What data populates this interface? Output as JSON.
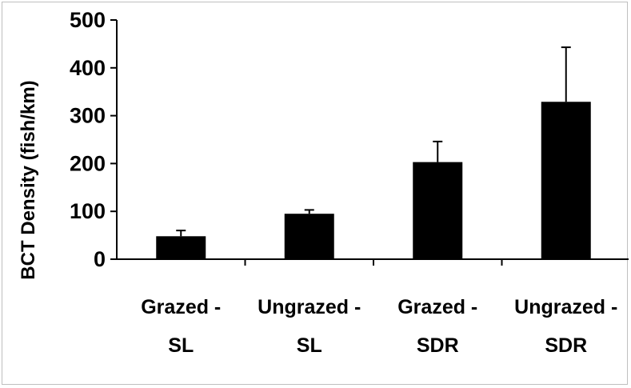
{
  "chart_data": {
    "type": "bar",
    "title": "",
    "xlabel": "",
    "ylabel": "BCT Density (fish/km)",
    "ylim": [
      0,
      500
    ],
    "yticks": [
      0,
      100,
      200,
      300,
      400,
      500
    ],
    "ytick_labels": [
      "0",
      "100",
      "200",
      "300",
      "400",
      "500"
    ],
    "categories": [
      {
        "line1": "Grazed -",
        "line2": "SL"
      },
      {
        "line1": "Ungrazed -",
        "line2": "SL"
      },
      {
        "line1": "Grazed -",
        "line2": "SDR"
      },
      {
        "line1": "Ungrazed -",
        "line2": "SDR"
      }
    ],
    "values": [
      48,
      95,
      203,
      329
    ],
    "error_upper": [
      60,
      103,
      246,
      443
    ],
    "bar_color": "#000000",
    "grid": false,
    "legend": "none"
  }
}
